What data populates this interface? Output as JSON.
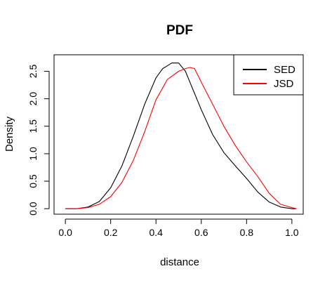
{
  "chart_data": {
    "type": "line",
    "title": "PDF",
    "xlabel": "distance",
    "ylabel": "Density",
    "xlim": [
      -0.05,
      1.05
    ],
    "ylim": [
      -0.1,
      2.8
    ],
    "xticks": [
      0.0,
      0.2,
      0.4,
      0.6,
      0.8,
      1.0
    ],
    "xtick_labels": [
      "0.0",
      "0.2",
      "0.4",
      "0.6",
      "0.8",
      "1.0"
    ],
    "yticks": [
      0.0,
      0.5,
      1.0,
      1.5,
      2.0,
      2.5
    ],
    "ytick_labels": [
      "0.0",
      "0.5",
      "1.0",
      "1.5",
      "2.0",
      "2.5"
    ],
    "grid": false,
    "legend_position": "top-right",
    "series": [
      {
        "name": "SED",
        "color": "#000000",
        "x": [
          0.0,
          0.05,
          0.1,
          0.15,
          0.2,
          0.25,
          0.3,
          0.35,
          0.4,
          0.43,
          0.45,
          0.47,
          0.5,
          0.53,
          0.55,
          0.6,
          0.65,
          0.7,
          0.75,
          0.8,
          0.85,
          0.9,
          0.95,
          1.0,
          1.02
        ],
        "y": [
          0.0,
          0.0,
          0.03,
          0.13,
          0.38,
          0.78,
          1.32,
          1.9,
          2.38,
          2.55,
          2.6,
          2.65,
          2.65,
          2.5,
          2.3,
          1.8,
          1.35,
          1.02,
          0.78,
          0.55,
          0.3,
          0.12,
          0.03,
          0.0,
          0.0
        ]
      },
      {
        "name": "JSD",
        "color": "#ff0000",
        "x": [
          0.0,
          0.05,
          0.1,
          0.15,
          0.2,
          0.25,
          0.3,
          0.35,
          0.4,
          0.45,
          0.5,
          0.53,
          0.55,
          0.57,
          0.6,
          0.65,
          0.7,
          0.75,
          0.8,
          0.85,
          0.9,
          0.95,
          1.0,
          1.02
        ],
        "y": [
          0.0,
          0.0,
          0.02,
          0.08,
          0.22,
          0.48,
          0.88,
          1.4,
          1.98,
          2.35,
          2.5,
          2.55,
          2.57,
          2.55,
          2.3,
          1.9,
          1.5,
          1.15,
          0.85,
          0.58,
          0.28,
          0.08,
          0.02,
          0.0
        ]
      }
    ]
  }
}
